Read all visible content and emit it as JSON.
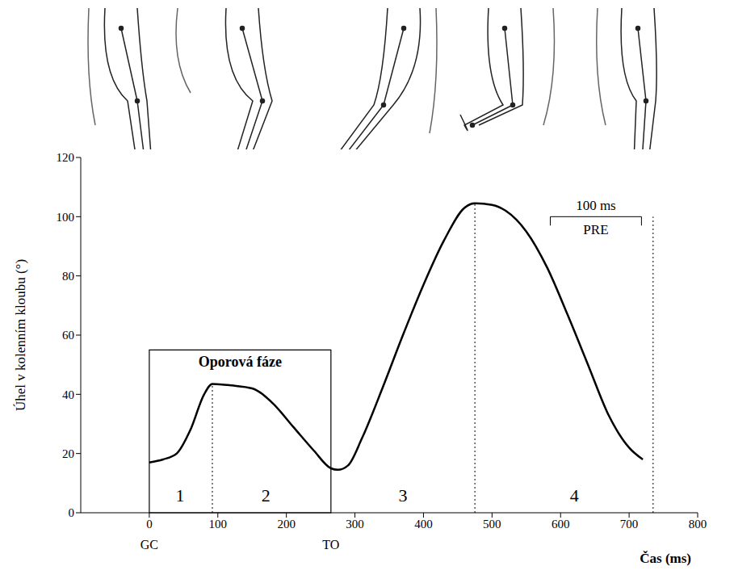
{
  "chart_data": {
    "type": "line",
    "x_label": "Čas (ms)",
    "y_label": "Úhel v kolenním kloubu (°)",
    "x": [
      0,
      20,
      40,
      60,
      80,
      92,
      120,
      150,
      180,
      210,
      240,
      265,
      275,
      290,
      310,
      340,
      370,
      400,
      430,
      460,
      475,
      500,
      520,
      550,
      580,
      610,
      640,
      670,
      700,
      720
    ],
    "values": [
      17,
      18,
      20,
      28,
      40,
      43.5,
      43,
      42,
      37,
      29,
      21,
      15,
      14.5,
      16,
      25,
      42,
      60,
      77,
      92,
      103,
      104.5,
      104,
      102,
      95,
      83,
      67,
      50,
      33,
      22,
      18
    ],
    "color": "#000000",
    "xlim": [
      -100,
      800
    ],
    "ylim": [
      0,
      120
    ],
    "xticks": [
      0,
      100,
      200,
      300,
      400,
      500,
      600,
      700,
      800
    ],
    "yticks": [
      0,
      20,
      40,
      60,
      80,
      100,
      120
    ],
    "support_phase": {
      "text": "Oporová fáze",
      "x": [
        0,
        265
      ],
      "y": 55
    },
    "events": [
      {
        "label": "GC",
        "x": 0
      },
      {
        "label": "TO",
        "x": 265
      }
    ],
    "phases": [
      {
        "label": "1",
        "x": 45,
        "y": 6
      },
      {
        "label": "2",
        "x": 170,
        "y": 6
      },
      {
        "label": "3",
        "x": 370,
        "y": 6
      },
      {
        "label": "4",
        "x": 620,
        "y": 6
      }
    ],
    "dividers": [
      {
        "x": 92,
        "y": 43.5
      },
      {
        "x": 475,
        "y": 104.5
      },
      {
        "x": 735,
        "y": 100
      }
    ],
    "pre": {
      "text": "100 ms",
      "label": "PRE",
      "x": [
        585,
        718
      ],
      "y": 100
    }
  }
}
